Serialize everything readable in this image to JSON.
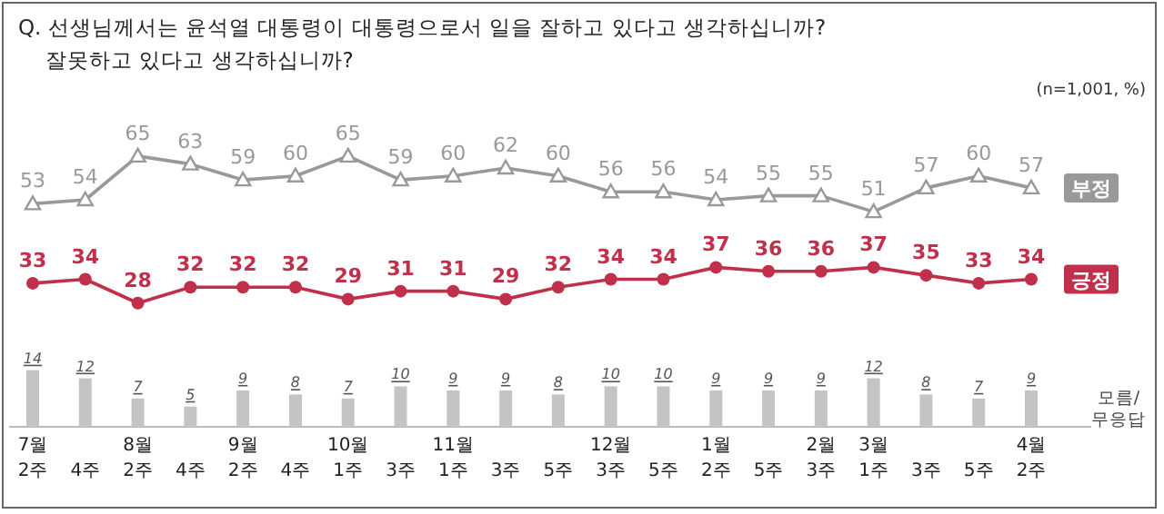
{
  "chart_data": [
    {
      "type": "line",
      "title": "Q. 선생님께서는 윤석열 대통령이 대통령으로서 일을 잘하고 있다고 생각하십니까?",
      "subtitle": "잘못하고 있다고 생각하십니까?",
      "annotations": [
        "(n=1,001, %)"
      ],
      "categories": [
        null,
        null,
        null,
        null,
        null,
        null,
        null,
        null,
        null,
        null,
        null,
        null,
        null,
        null,
        null,
        null,
        null,
        null,
        null,
        null
      ],
      "series": [
        {
          "name": "부정",
          "color": "#999999",
          "marker": "triangle",
          "values": [
            53,
            54,
            65,
            63,
            59,
            60,
            65,
            59,
            60,
            62,
            60,
            56,
            56,
            54,
            55,
            55,
            51,
            57,
            60,
            57
          ]
        },
        {
          "name": "긍정",
          "color": "#c0304a",
          "marker": "circle",
          "values": [
            33,
            34,
            28,
            32,
            32,
            32,
            29,
            31,
            31,
            29,
            32,
            34,
            34,
            37,
            36,
            36,
            37,
            35,
            33,
            34
          ]
        }
      ],
      "tick_labels": false,
      "data_labels": true
    },
    {
      "type": "bar",
      "categories": [
        "7월 2주",
        "4주",
        "8월 2주",
        "4주",
        "9월 2주",
        "4주",
        "10월 1주",
        "3주",
        "11월 1주",
        "3주",
        "5주",
        "12월 3주",
        "5주",
        "1월 2주",
        "5주",
        "2월 3주",
        "3월 1주",
        "3주",
        "5주",
        "4월 2주"
      ],
      "series": [
        {
          "name": "모름/\n무응답",
          "color": "#c4c4c4",
          "values": [
            14,
            12,
            7,
            5,
            9,
            8,
            7,
            10,
            9,
            9,
            8,
            10,
            10,
            9,
            9,
            9,
            12,
            8,
            7,
            9
          ]
        }
      ],
      "tick_labels": "x",
      "data_labels": true
    }
  ]
}
